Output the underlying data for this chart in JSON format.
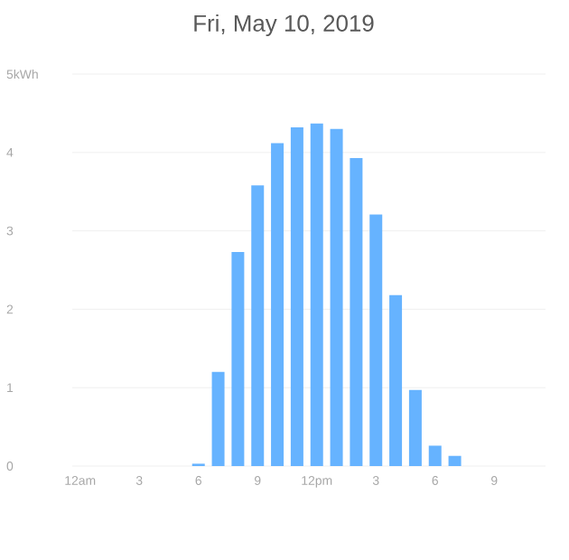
{
  "chart_data": {
    "type": "bar",
    "title": "Fri, May 10, 2019",
    "categories": [
      "12am",
      null,
      null,
      "3",
      null,
      null,
      "6",
      null,
      null,
      "9",
      null,
      null,
      "12pm",
      null,
      null,
      "3",
      null,
      null,
      "6",
      null,
      null,
      "9",
      null,
      null
    ],
    "values": [
      0,
      0,
      0,
      0,
      0,
      0,
      0.03,
      1.2,
      2.73,
      3.58,
      4.12,
      4.32,
      4.37,
      4.3,
      3.93,
      3.21,
      2.18,
      0.97,
      0.26,
      0.13,
      0,
      0,
      0,
      0
    ],
    "color": "#66b3ff",
    "ylim": [
      0,
      5
    ],
    "yticks": [
      0,
      1,
      2,
      3,
      4,
      {
        "value": 5,
        "label": "5kWh"
      }
    ],
    "grid": "y"
  }
}
